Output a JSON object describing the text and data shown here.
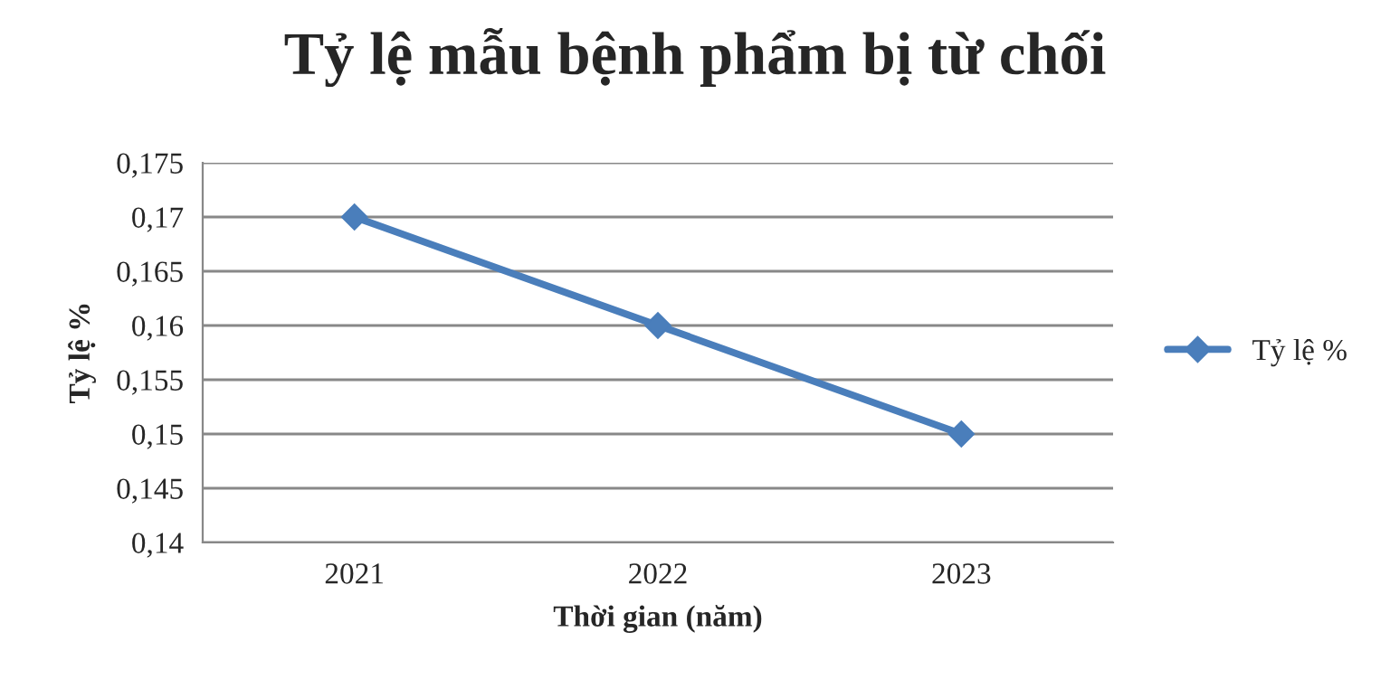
{
  "chart_data": {
    "type": "line",
    "title": "Tỷ lệ mẫu bệnh phẩm bị từ chối",
    "xlabel": "Thời gian (năm)",
    "ylabel": "Tỷ lệ %",
    "categories": [
      "2021",
      "2022",
      "2023"
    ],
    "series": [
      {
        "name": "Tỷ lệ %",
        "color": "#4a7ebb",
        "values": [
          0.17,
          0.16,
          0.15
        ]
      }
    ],
    "ylim": [
      0.14,
      0.175
    ],
    "yticks": [
      {
        "value": 0.14,
        "label": "0,14"
      },
      {
        "value": 0.145,
        "label": "0,145"
      },
      {
        "value": 0.15,
        "label": "0,15"
      },
      {
        "value": 0.155,
        "label": "0,155"
      },
      {
        "value": 0.16,
        "label": "0,16"
      },
      {
        "value": 0.165,
        "label": "0,165"
      },
      {
        "value": 0.17,
        "label": "0,17"
      },
      {
        "value": 0.175,
        "label": "0,175"
      }
    ],
    "grid": "y",
    "legend": "right",
    "marker": "diamond",
    "line_style": "solid"
  }
}
